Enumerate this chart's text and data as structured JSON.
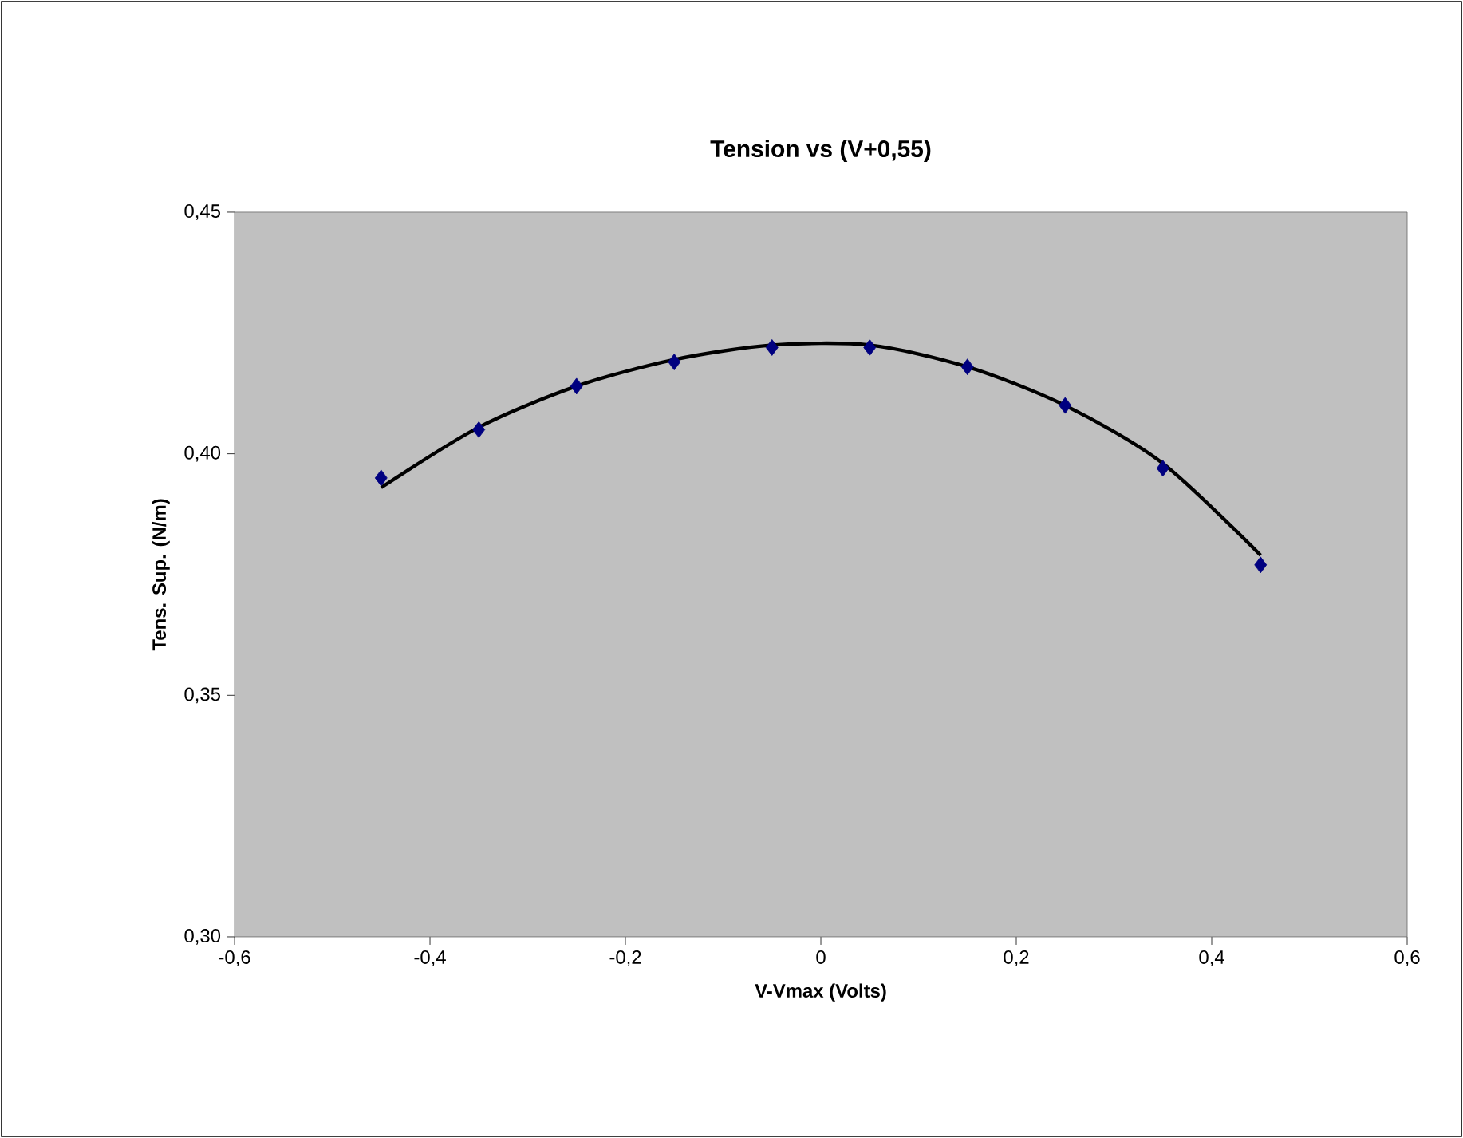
{
  "chart_data": {
    "type": "scatter",
    "title": "Tension vs (V+0,55)",
    "xlabel": "V-Vmax (Volts)",
    "ylabel": "Tens. Sup. (N/m)",
    "xlim": [
      -0.6,
      0.6
    ],
    "ylim": [
      0.3,
      0.45
    ],
    "xticks": [
      {
        "value": -0.6,
        "label": "-0,6"
      },
      {
        "value": -0.4,
        "label": "-0,4"
      },
      {
        "value": -0.2,
        "label": "-0,2"
      },
      0,
      {
        "value": 0.2,
        "label": "0,2"
      },
      {
        "value": 0.4,
        "label": "0,4"
      },
      {
        "value": 0.6,
        "label": "0,6"
      }
    ],
    "yticks": [
      {
        "value": 0.3,
        "label": "0,30"
      },
      {
        "value": 0.35,
        "label": "0,35"
      },
      {
        "value": 0.4,
        "label": "0,40"
      },
      {
        "value": 0.45,
        "label": "0,45"
      }
    ],
    "grid": false,
    "series": [
      {
        "color": "#000080",
        "marker": "diamond",
        "x": [
          -0.45,
          -0.35,
          -0.25,
          -0.15,
          -0.05,
          0.05,
          0.15,
          0.25,
          0.35,
          0.45
        ],
        "values": [
          0.395,
          0.405,
          0.414,
          0.419,
          0.422,
          0.422,
          0.418,
          0.41,
          0.397,
          0.377
        ]
      },
      {
        "type": "line",
        "color": "#000000",
        "marker": "none",
        "line_style": "solid",
        "x": [
          -0.45,
          -0.35,
          -0.25,
          -0.15,
          -0.05,
          0.05,
          0.15,
          0.25,
          0.35,
          0.45
        ],
        "values": [
          0.393,
          0.4055,
          0.414,
          0.4195,
          0.4225,
          0.4225,
          0.418,
          0.41,
          0.398,
          0.379
        ]
      }
    ]
  }
}
